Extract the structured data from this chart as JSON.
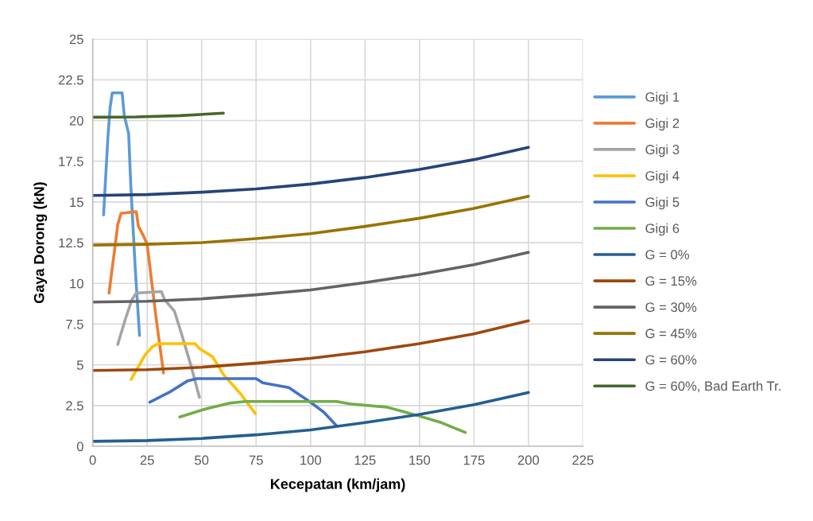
{
  "chart_data": {
    "type": "line",
    "xlabel": "Kecepatan (km/jam)",
    "ylabel": "Gaya Dorong (kN)",
    "xlim": [
      0,
      225
    ],
    "xticks": [
      0,
      25,
      50,
      75,
      100,
      125,
      150,
      175,
      200,
      225
    ],
    "ylim": [
      0,
      25
    ],
    "yticks": [
      0,
      2.5,
      5,
      7.5,
      10,
      12.5,
      15,
      17.5,
      20,
      22.5,
      25
    ],
    "grid": true,
    "legend": "right",
    "series": [
      {
        "name": "Gigi 1",
        "color": "#5b9bd5",
        "x": [
          5,
          7,
          8,
          9,
          13.5,
          14.5,
          16.5,
          17.5,
          19.5,
          21.5
        ],
        "values": [
          14.2,
          19,
          20.8,
          21.7,
          21.7,
          20.3,
          19.2,
          16,
          11,
          6.8
        ]
      },
      {
        "name": "Gigi 2",
        "color": "#ed7d31",
        "x": [
          7.5,
          10,
          11.5,
          13,
          20,
          21,
          23,
          25,
          29,
          32.5
        ],
        "values": [
          9.4,
          12,
          13.6,
          14.3,
          14.4,
          13.5,
          13,
          12.4,
          8,
          4.5
        ]
      },
      {
        "name": "Gigi 3",
        "color": "#a5a5a5",
        "x": [
          11.5,
          15,
          18,
          20,
          31.5,
          33,
          37.5,
          41,
          45,
          49
        ],
        "values": [
          6.25,
          7.8,
          9,
          9.4,
          9.5,
          9,
          8.3,
          6.8,
          5,
          3
        ]
      },
      {
        "name": "Gigi 4",
        "color": "#ffc000",
        "x": [
          17.6,
          24,
          27.3,
          30,
          47,
          49,
          55,
          60,
          68,
          74.7
        ],
        "values": [
          4.1,
          5.6,
          6.1,
          6.3,
          6.3,
          6.0,
          5.5,
          4.4,
          3.2,
          2.0
        ]
      },
      {
        "name": "Gigi 5",
        "color": "#4472c4",
        "x": [
          26.2,
          35,
          43.4,
          47.8,
          75,
          78,
          90,
          100,
          106,
          112
        ],
        "values": [
          2.7,
          3.3,
          4.0,
          4.15,
          4.15,
          3.9,
          3.6,
          2.7,
          2.1,
          1.25
        ]
      },
      {
        "name": "Gigi 6",
        "color": "#70ad47",
        "x": [
          40,
          52,
          63,
          70,
          112,
          118,
          135,
          150,
          160,
          171
        ],
        "values": [
          1.8,
          2.3,
          2.65,
          2.75,
          2.75,
          2.6,
          2.4,
          1.85,
          1.45,
          0.85
        ]
      },
      {
        "name": "G = 0%",
        "color": "#255e91",
        "x": [
          0,
          25,
          50,
          75,
          100,
          125,
          150,
          175,
          200
        ],
        "values": [
          0.3,
          0.35,
          0.48,
          0.7,
          1.0,
          1.45,
          1.95,
          2.55,
          3.3
        ]
      },
      {
        "name": "G = 15%",
        "color": "#9e480e",
        "x": [
          0,
          25,
          50,
          75,
          100,
          125,
          150,
          175,
          200
        ],
        "values": [
          4.65,
          4.7,
          4.85,
          5.1,
          5.4,
          5.8,
          6.3,
          6.9,
          7.7
        ]
      },
      {
        "name": "G = 30%",
        "color": "#636363",
        "x": [
          0,
          25,
          50,
          75,
          100,
          125,
          150,
          175,
          200
        ],
        "values": [
          8.85,
          8.9,
          9.05,
          9.3,
          9.6,
          10.05,
          10.55,
          11.15,
          11.9
        ]
      },
      {
        "name": "G = 45%",
        "color": "#997300",
        "x": [
          0,
          25,
          50,
          75,
          100,
          125,
          150,
          175,
          200
        ],
        "values": [
          12.35,
          12.4,
          12.5,
          12.75,
          13.05,
          13.5,
          14.0,
          14.6,
          15.35
        ]
      },
      {
        "name": "G = 60%",
        "color": "#264478",
        "x": [
          0,
          25,
          50,
          75,
          100,
          125,
          150,
          175,
          200
        ],
        "values": [
          15.4,
          15.45,
          15.6,
          15.8,
          16.1,
          16.5,
          17.0,
          17.6,
          18.35
        ]
      },
      {
        "name": "G = 60%, Bad Earth Tr.",
        "color": "#43682b",
        "x": [
          0,
          20,
          40,
          60
        ],
        "values": [
          20.2,
          20.22,
          20.3,
          20.45
        ]
      }
    ]
  }
}
